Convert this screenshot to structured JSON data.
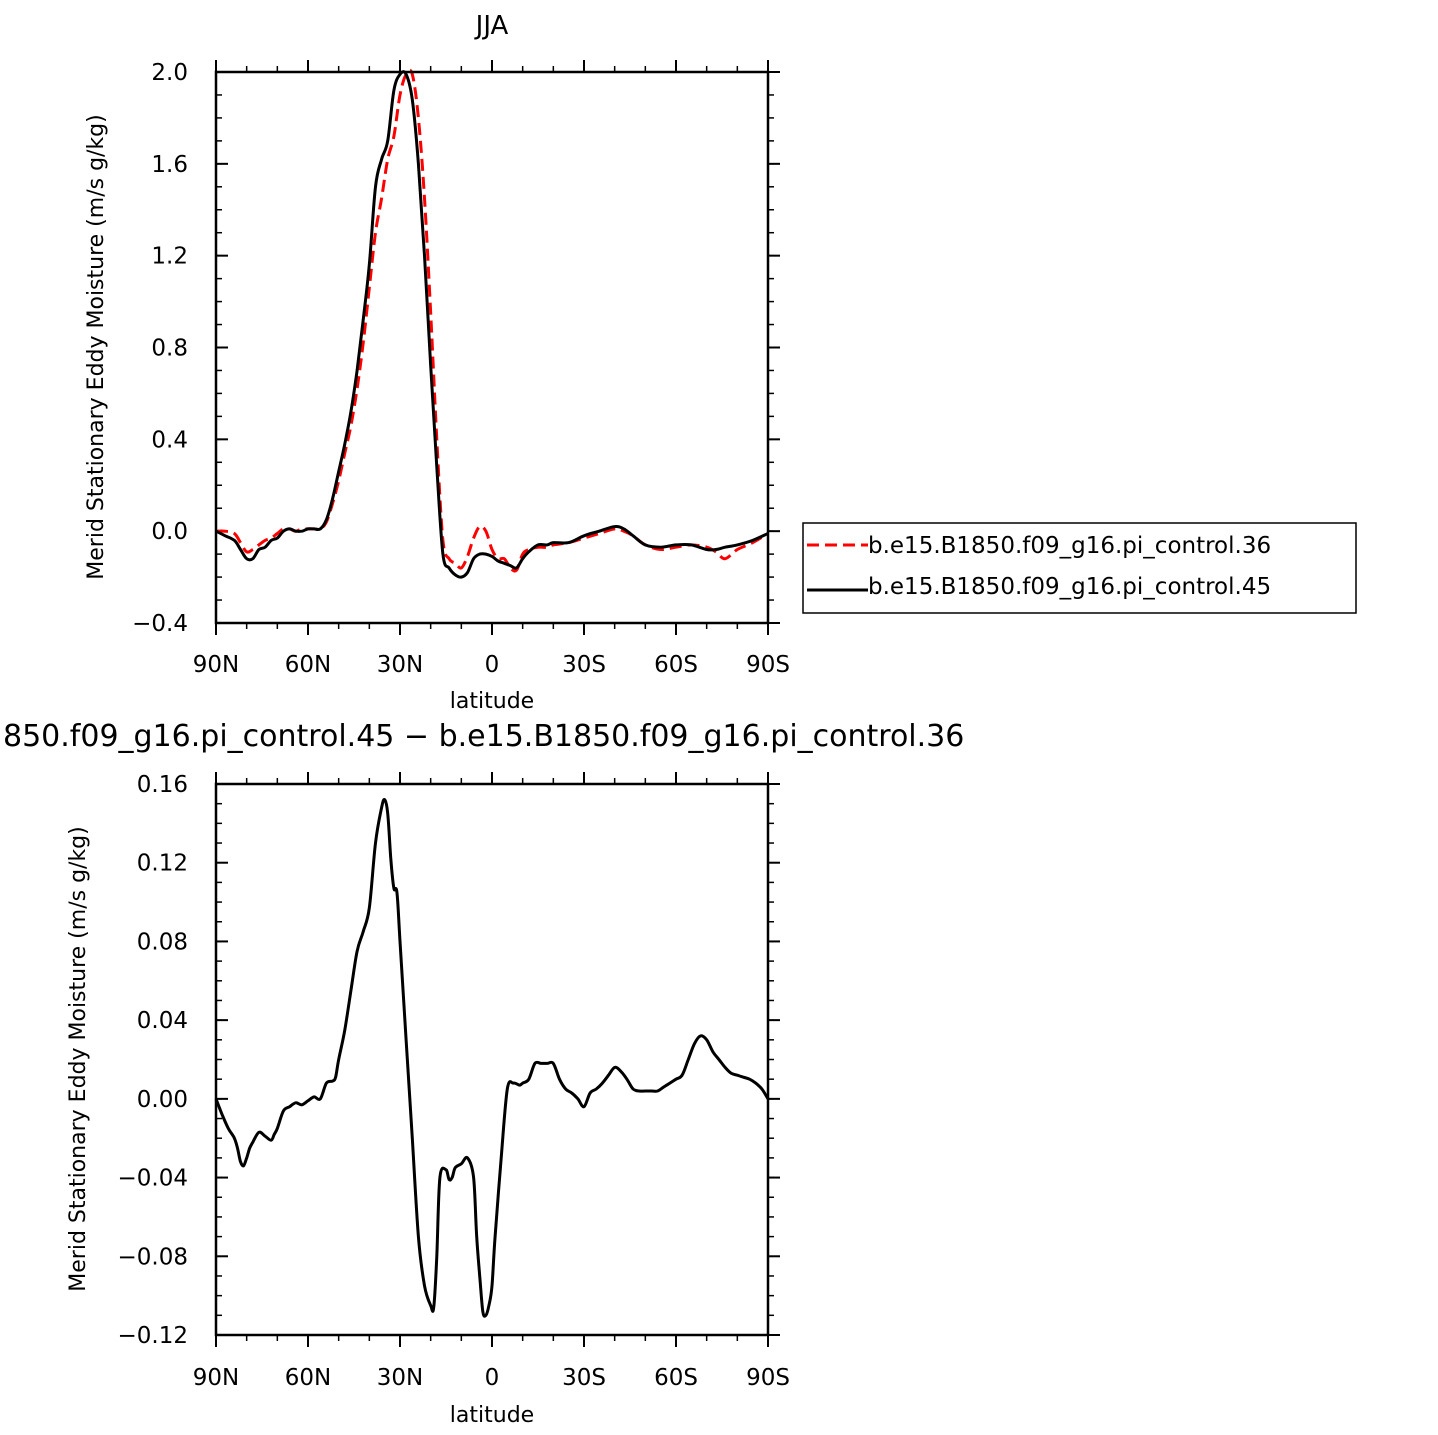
{
  "chart_data": [
    {
      "type": "line",
      "title": "JJA",
      "xlabel": "latitude",
      "ylabel": "Merid Stationary Eddy Moisture (m/s g/kg)",
      "x_tick_values": [
        90,
        60,
        30,
        0,
        -30,
        -60,
        -90
      ],
      "x_tick_labels": [
        "90N",
        "60N",
        "30N",
        "0",
        "30S",
        "60S",
        "90S"
      ],
      "xlim": [
        90,
        -90
      ],
      "ylim": [
        -0.4,
        2.0
      ],
      "y_ticks": [
        -0.4,
        0.0,
        0.4,
        0.8,
        1.2,
        1.6,
        2.0
      ],
      "y_tick_labels": [
        "−0.4",
        "0.0",
        "0.4",
        "0.8",
        "1.2",
        "1.6",
        "2.0"
      ],
      "legend_position": "right",
      "series": [
        {
          "name": "b.e15.B1850.f09_g16.pi_control.36",
          "color": "#ff0000",
          "dash": "dashed",
          "x": [
            90,
            87,
            84,
            82,
            80,
            78,
            76,
            74,
            72,
            70,
            68,
            66,
            64,
            62,
            60,
            58,
            56,
            54,
            52,
            50,
            48,
            46,
            44,
            42,
            40,
            38,
            36,
            34,
            32,
            30,
            28,
            26,
            24,
            22,
            20,
            18,
            16,
            14,
            12,
            10,
            8,
            6,
            4,
            2,
            0,
            -2,
            -4,
            -6,
            -8,
            -10,
            -12,
            -15,
            -18,
            -20,
            -25,
            -30,
            -35,
            -40,
            -43,
            -46,
            -50,
            -55,
            -60,
            -65,
            -70,
            -73,
            -76,
            -80,
            -85,
            -90
          ],
          "y": [
            0.0,
            0.0,
            -0.01,
            -0.05,
            -0.09,
            -0.08,
            -0.06,
            -0.04,
            -0.03,
            -0.01,
            0.01,
            0.01,
            0.0,
            0.01,
            0.01,
            0.01,
            0.01,
            0.04,
            0.12,
            0.22,
            0.34,
            0.46,
            0.62,
            0.82,
            1.06,
            1.3,
            1.45,
            1.62,
            1.72,
            1.9,
            1.99,
            1.99,
            1.8,
            1.45,
            0.95,
            0.4,
            -0.04,
            -0.12,
            -0.14,
            -0.16,
            -0.11,
            -0.03,
            0.02,
            0.0,
            -0.08,
            -0.12,
            -0.12,
            -0.16,
            -0.17,
            -0.1,
            -0.08,
            -0.07,
            -0.07,
            -0.06,
            -0.05,
            -0.03,
            -0.01,
            0.01,
            0.0,
            -0.02,
            -0.06,
            -0.08,
            -0.07,
            -0.06,
            -0.07,
            -0.09,
            -0.12,
            -0.08,
            -0.05,
            -0.01
          ]
        },
        {
          "name": "b.e15.B1850.f09_g16.pi_control.45",
          "color": "#000000",
          "dash": "solid",
          "x": [
            90,
            87,
            84,
            82,
            80,
            78,
            76,
            74,
            72,
            70,
            68,
            66,
            64,
            62,
            60,
            58,
            56,
            54,
            52,
            50,
            48,
            46,
            44,
            42,
            40,
            38,
            36,
            34,
            32,
            30,
            28,
            26,
            24,
            22,
            20,
            18,
            16,
            14,
            12,
            10,
            8,
            6,
            4,
            2,
            0,
            -2,
            -4,
            -6,
            -8,
            -10,
            -12,
            -15,
            -18,
            -20,
            -25,
            -30,
            -35,
            -40,
            -43,
            -46,
            -50,
            -55,
            -60,
            -65,
            -70,
            -73,
            -76,
            -80,
            -85,
            -90
          ],
          "y": [
            0.0,
            -0.02,
            -0.04,
            -0.08,
            -0.12,
            -0.12,
            -0.08,
            -0.07,
            -0.04,
            -0.03,
            0.0,
            0.01,
            0.0,
            0.0,
            0.01,
            0.01,
            0.01,
            0.05,
            0.14,
            0.26,
            0.38,
            0.52,
            0.7,
            0.92,
            1.16,
            1.5,
            1.62,
            1.7,
            1.92,
            1.99,
            1.99,
            1.88,
            1.6,
            1.2,
            0.72,
            0.28,
            -0.1,
            -0.16,
            -0.19,
            -0.2,
            -0.18,
            -0.12,
            -0.1,
            -0.1,
            -0.11,
            -0.13,
            -0.14,
            -0.15,
            -0.16,
            -0.12,
            -0.09,
            -0.06,
            -0.06,
            -0.05,
            -0.05,
            -0.02,
            0.0,
            0.02,
            0.01,
            -0.02,
            -0.06,
            -0.07,
            -0.06,
            -0.06,
            -0.08,
            -0.08,
            -0.07,
            -0.06,
            -0.04,
            -0.01
          ]
        }
      ]
    },
    {
      "type": "line",
      "title": "850.f09_g16.pi_control.45 − b.e15.B1850.f09_g16.pi_control.36",
      "xlabel": "latitude",
      "ylabel": "Merid Stationary Eddy Moisture (m/s g/kg)",
      "x_tick_values": [
        90,
        60,
        30,
        0,
        -30,
        -60,
        -90
      ],
      "x_tick_labels": [
        "90N",
        "60N",
        "30N",
        "0",
        "30S",
        "60S",
        "90S"
      ],
      "xlim": [
        90,
        -90
      ],
      "ylim": [
        -0.12,
        0.16
      ],
      "y_ticks": [
        -0.12,
        -0.08,
        -0.04,
        0.0,
        0.04,
        0.08,
        0.12,
        0.16
      ],
      "y_tick_labels": [
        "−0.12",
        "−0.08",
        "−0.04",
        "0.00",
        "0.04",
        "0.08",
        "0.12",
        "0.16"
      ],
      "series": [
        {
          "color": "#000000",
          "dash": "solid",
          "x": [
            90,
            88,
            86,
            84,
            83,
            82,
            81,
            80,
            79,
            78,
            76,
            74,
            72,
            71,
            70,
            68,
            66,
            64,
            62,
            60,
            58,
            56,
            54,
            52,
            51,
            50,
            48,
            46,
            44,
            42,
            40,
            38,
            36,
            35,
            34,
            33,
            32,
            31,
            30,
            28,
            26,
            24,
            22,
            20,
            19,
            18,
            17,
            15,
            14,
            13,
            12,
            10,
            8,
            6,
            5,
            4,
            3,
            2,
            1,
            0,
            -1,
            -3,
            -5,
            -7,
            -9,
            -10,
            -12,
            -14,
            -16,
            -18,
            -20,
            -22,
            -24,
            -26,
            -28,
            -30,
            -32,
            -34,
            -36,
            -38,
            -40,
            -42,
            -44,
            -46,
            -48,
            -50,
            -52,
            -54,
            -56,
            -58,
            -60,
            -62,
            -64,
            -66,
            -68,
            -70,
            -72,
            -74,
            -76,
            -78,
            -80,
            -82,
            -84,
            -86,
            -88,
            -90
          ],
          "y": [
            0.0,
            -0.008,
            -0.015,
            -0.02,
            -0.025,
            -0.032,
            -0.034,
            -0.03,
            -0.025,
            -0.022,
            -0.017,
            -0.019,
            -0.021,
            -0.018,
            -0.015,
            -0.006,
            -0.004,
            -0.002,
            -0.003,
            -0.001,
            0.001,
            0.0,
            0.008,
            0.009,
            0.011,
            0.02,
            0.035,
            0.055,
            0.075,
            0.085,
            0.097,
            0.13,
            0.148,
            0.152,
            0.145,
            0.122,
            0.107,
            0.105,
            0.08,
            0.03,
            -0.02,
            -0.07,
            -0.095,
            -0.105,
            -0.106,
            -0.08,
            -0.04,
            -0.036,
            -0.041,
            -0.04,
            -0.035,
            -0.033,
            -0.03,
            -0.04,
            -0.07,
            -0.09,
            -0.108,
            -0.11,
            -0.105,
            -0.095,
            -0.07,
            -0.03,
            0.005,
            0.008,
            0.007,
            0.008,
            0.01,
            0.018,
            0.018,
            0.018,
            0.018,
            0.01,
            0.005,
            0.003,
            0.0,
            -0.004,
            0.003,
            0.005,
            0.008,
            0.012,
            0.016,
            0.014,
            0.01,
            0.005,
            0.004,
            0.004,
            0.004,
            0.004,
            0.006,
            0.008,
            0.01,
            0.012,
            0.02,
            0.028,
            0.032,
            0.03,
            0.024,
            0.02,
            0.016,
            0.013,
            0.012,
            0.011,
            0.01,
            0.008,
            0.005,
            0.0
          ]
        }
      ]
    }
  ]
}
